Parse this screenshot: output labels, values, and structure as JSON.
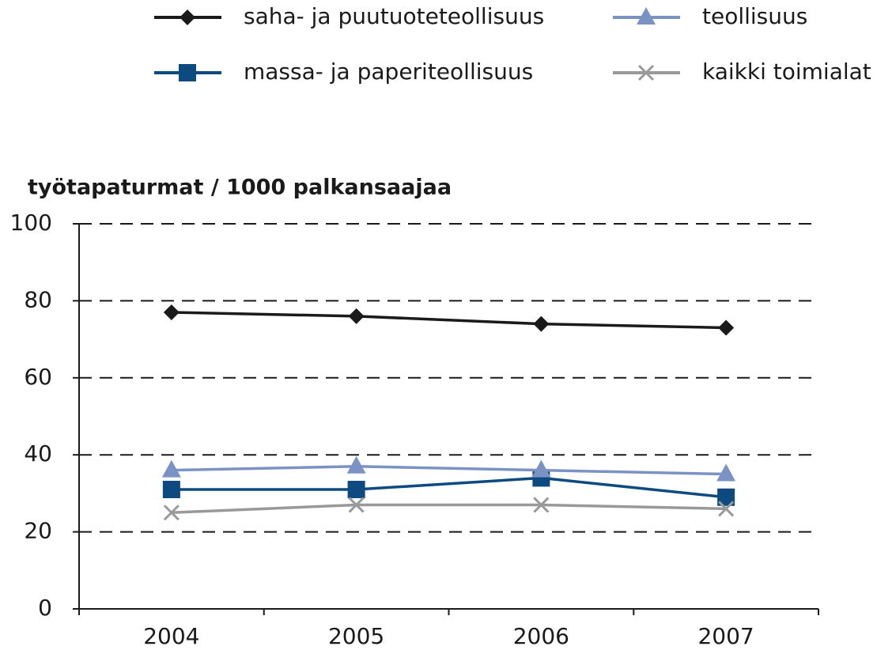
{
  "chart_data": {
    "type": "line",
    "y_axis_label": "työtapaturmat / 1000 palkansaajaa",
    "categories": [
      "2004",
      "2005",
      "2006",
      "2007"
    ],
    "series": [
      {
        "name": "saha- ja puutuoteteollisuus",
        "color": "#1a1a1a",
        "marker": "diamond",
        "values": [
          77,
          76,
          74,
          73
        ]
      },
      {
        "name": "massa- ja paperiteollisuus",
        "color": "#0d4a80",
        "marker": "square",
        "values": [
          31,
          31,
          34,
          29
        ]
      },
      {
        "name": "teollisuus",
        "color": "#7b93c4",
        "marker": "triangle",
        "values": [
          36,
          37,
          36,
          35
        ]
      },
      {
        "name": "kaikki toimialat",
        "color": "#999999",
        "marker": "x",
        "values": [
          25,
          27,
          27,
          26
        ]
      }
    ],
    "ylim": [
      0,
      100
    ],
    "yticks": [
      0,
      20,
      40,
      60,
      80,
      100
    ],
    "grid": true,
    "legend": "top"
  }
}
